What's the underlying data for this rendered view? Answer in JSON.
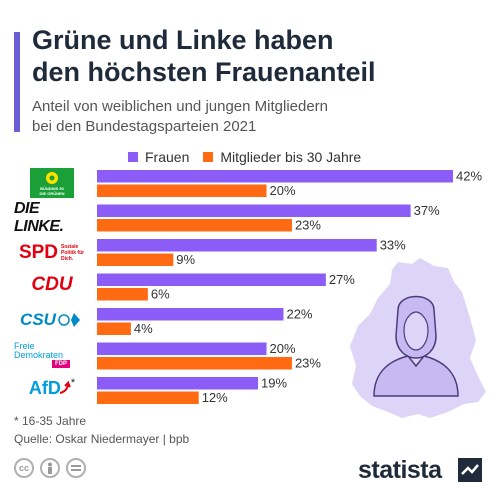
{
  "header": {
    "title_line1": "Grüne und Linke haben",
    "title_line2": "den höchsten Frauenanteil",
    "subtitle_line1": "Anteil von weiblichen und jungen Mitgliedern",
    "subtitle_line2": "bei den Bundestagsparteien 2021"
  },
  "parties": [
    {
      "name": "Bündnis 90 / Die Grünen",
      "logo_text": "BÜNDNIS 90 DIE GRÜNEN",
      "color": "#1aa037"
    },
    {
      "name": "Die Linke",
      "logo_text": "DIE LINKE.",
      "color": "#111111"
    },
    {
      "name": "SPD",
      "logo_text": "SPD",
      "logo_subtext": "Soziale Politik für Dich.",
      "color": "#e3000f"
    },
    {
      "name": "CDU",
      "logo_text": "CDU",
      "color": "#e3000f"
    },
    {
      "name": "CSU",
      "logo_text": "CSU",
      "color": "#008ac5"
    },
    {
      "name": "FDP",
      "logo_text_line1": "Freie",
      "logo_text_line2": "Demokraten",
      "logo_badge": "FDP",
      "color": "#009ee0"
    },
    {
      "name": "AfD",
      "logo_text": "AfD",
      "logo_asterisk": "*",
      "color": "#009ee0"
    }
  ],
  "chart_data": {
    "type": "bar",
    "orientation": "horizontal",
    "categories": [
      "Grüne",
      "Die Linke",
      "SPD",
      "CDU",
      "CSU",
      "FDP",
      "AfD"
    ],
    "series": [
      {
        "name": "Frauen",
        "color": "#8b5cf6",
        "values": [
          42,
          37,
          33,
          27,
          22,
          20,
          19
        ]
      },
      {
        "name": "Mitglieder bis 30 Jahre",
        "color": "#ff6a13",
        "values": [
          20,
          23,
          9,
          6,
          4,
          23,
          12
        ]
      }
    ],
    "value_suffix": "%",
    "xlim": [
      0,
      42
    ],
    "grid": false,
    "legend": "top"
  },
  "footer": {
    "footnote": "* 16-35 Jahre",
    "source": "Quelle: Oskar Niedermayer | bpb",
    "brand": "statista",
    "cc_icons": [
      "cc-icon",
      "by-icon",
      "nd-icon"
    ]
  }
}
